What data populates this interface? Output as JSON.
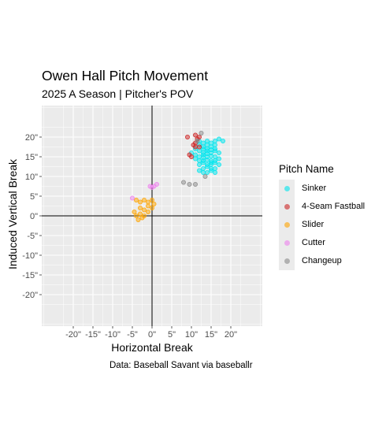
{
  "chart_data": {
    "type": "scatter",
    "title": "Owen Hall Pitch Movement",
    "subtitle": "2025 A Season | Pitcher's POV",
    "caption": "Data: Baseball Savant via baseballr",
    "xlabel": "Horizontal Break",
    "ylabel": "Induced Vertical Break",
    "xlim": [
      -28,
      28
    ],
    "ylim": [
      -28,
      28
    ],
    "x_ticks": [
      "-20\"",
      "-15\"",
      "-10\"",
      "-5\"",
      "0\"",
      "5\"",
      "10\"",
      "15\"",
      "20\""
    ],
    "y_ticks": [
      "20\"",
      "15\"",
      "10\"",
      "5\"",
      "0\"",
      "-5\"",
      "-10\"",
      "-15\"",
      "-20\""
    ],
    "x_tick_values": [
      -20,
      -15,
      -10,
      -5,
      0,
      5,
      10,
      15,
      20
    ],
    "y_tick_values": [
      20,
      15,
      10,
      5,
      0,
      -5,
      -10,
      -15,
      -20
    ],
    "grid": true,
    "reference_lines": {
      "x": 0,
      "y": 0
    },
    "legend": {
      "title": "Pitch Name",
      "placement": "right"
    },
    "series": [
      {
        "name": "Sinker",
        "color": "#00e5ee",
        "points": [
          [
            12,
            19
          ],
          [
            13,
            18.5
          ],
          [
            14,
            19
          ],
          [
            15,
            18.5
          ],
          [
            16,
            19
          ],
          [
            17,
            19.5
          ],
          [
            13,
            17.5
          ],
          [
            14,
            17
          ],
          [
            15,
            17.5
          ],
          [
            16,
            17
          ],
          [
            12,
            16.5
          ],
          [
            13,
            16
          ],
          [
            14,
            16.5
          ],
          [
            15,
            16
          ],
          [
            16,
            16.5
          ],
          [
            17,
            16
          ],
          [
            12,
            15
          ],
          [
            13,
            15.5
          ],
          [
            14,
            15
          ],
          [
            15,
            15.2
          ],
          [
            16,
            15
          ],
          [
            17,
            14.5
          ],
          [
            11,
            14.5
          ],
          [
            12,
            14
          ],
          [
            13,
            14
          ],
          [
            14,
            14.2
          ],
          [
            15,
            14
          ],
          [
            16,
            14
          ],
          [
            12,
            13
          ],
          [
            13,
            13.5
          ],
          [
            14,
            13
          ],
          [
            15,
            13
          ],
          [
            16,
            13.5
          ],
          [
            17,
            13
          ],
          [
            13,
            12
          ],
          [
            14,
            12.5
          ],
          [
            15,
            12
          ],
          [
            16,
            12
          ],
          [
            14,
            11
          ],
          [
            15,
            11.5
          ],
          [
            16,
            11
          ],
          [
            13,
            11
          ],
          [
            12,
            11.5
          ],
          [
            14,
            15.8
          ],
          [
            15,
            16.8
          ],
          [
            13,
            17
          ],
          [
            11,
            17
          ],
          [
            11,
            15.5
          ],
          [
            10,
            16
          ],
          [
            18,
            19
          ],
          [
            12,
            18
          ],
          [
            14,
            18
          ],
          [
            16,
            18
          ],
          [
            15,
            13.5
          ],
          [
            13,
            14.8
          ]
        ]
      },
      {
        "name": "4-Seam Fastball",
        "color": "#cd2626",
        "points": [
          [
            9,
            20
          ],
          [
            11,
            20.5
          ],
          [
            11.5,
            19.5
          ],
          [
            12,
            20
          ],
          [
            10.5,
            18
          ],
          [
            11,
            17.5
          ],
          [
            12,
            17.5
          ],
          [
            9.5,
            15.5
          ],
          [
            10,
            15
          ],
          [
            11,
            18.5
          ]
        ]
      },
      {
        "name": "Slider",
        "color": "#ffa500",
        "points": [
          [
            -4,
            4
          ],
          [
            -3,
            3.5
          ],
          [
            -2,
            4
          ],
          [
            -1,
            3.5
          ],
          [
            0,
            4
          ],
          [
            0.5,
            3
          ],
          [
            -4.5,
            1
          ],
          [
            -3,
            2
          ],
          [
            -2,
            1.5
          ],
          [
            -1,
            2.5
          ],
          [
            0,
            2
          ],
          [
            -4,
            0
          ],
          [
            -3,
            0.5
          ],
          [
            -2,
            0
          ],
          [
            -3.5,
            -1
          ],
          [
            -2.5,
            -0.5
          ],
          [
            -1,
            1
          ]
        ]
      },
      {
        "name": "Cutter",
        "color": "#ee82ee",
        "points": [
          [
            -5,
            4.5
          ],
          [
            -0.5,
            7.5
          ],
          [
            0.5,
            7.5
          ],
          [
            1.2,
            8
          ],
          [
            0,
            7.2
          ]
        ]
      },
      {
        "name": "Changeup",
        "color": "#8b8b8b",
        "points": [
          [
            8,
            8.5
          ],
          [
            9.5,
            8
          ],
          [
            11,
            8
          ],
          [
            13.5,
            10
          ],
          [
            12.5,
            21
          ],
          [
            11.5,
            19
          ]
        ]
      }
    ]
  }
}
